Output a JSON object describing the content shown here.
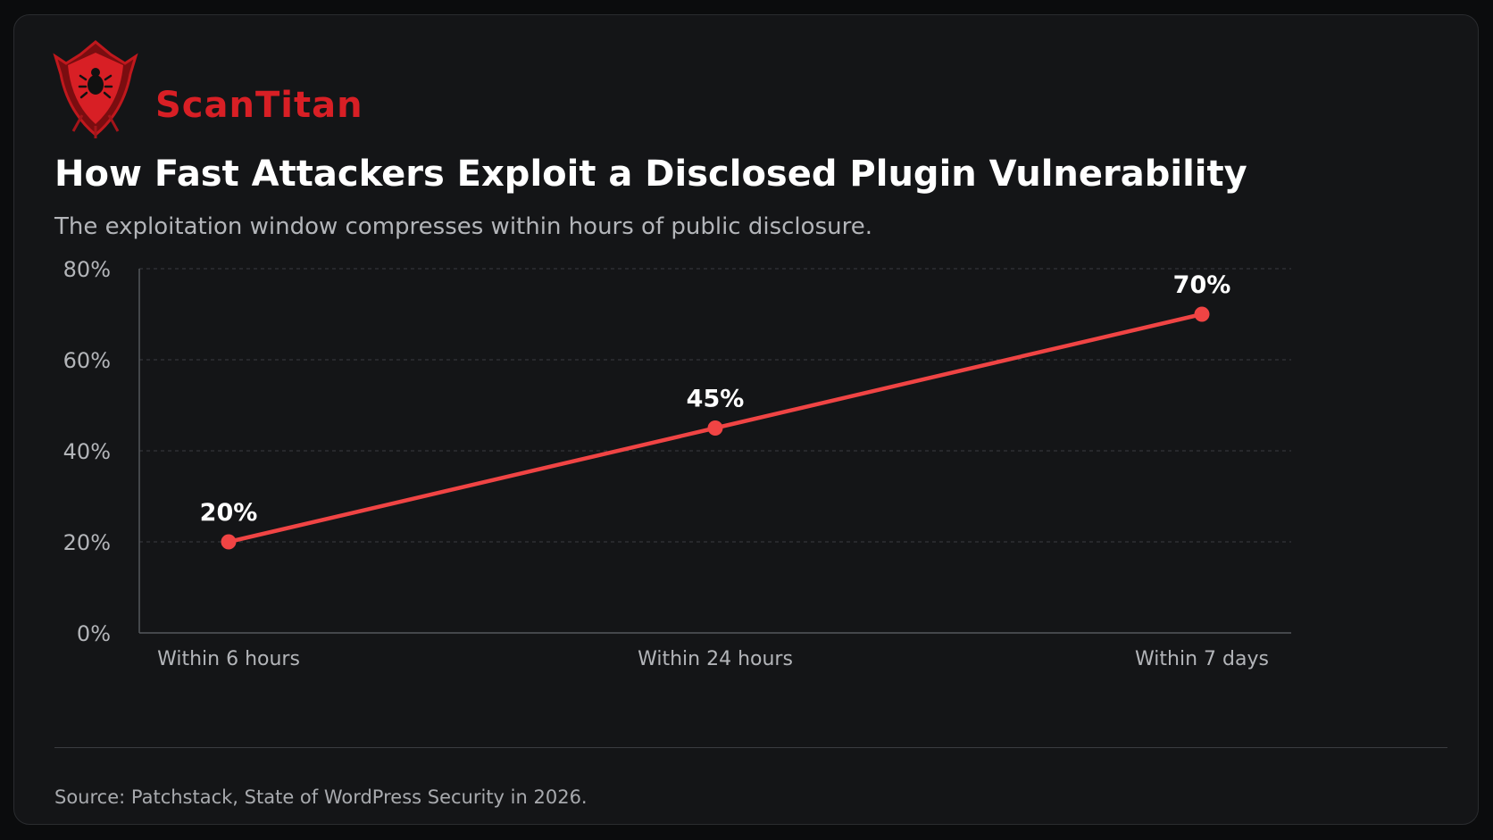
{
  "brand": {
    "name": "ScanTitan",
    "accent_color": "#d81f25",
    "logo_icon": "shield-bug-icon"
  },
  "header": {
    "title": "How Fast Attackers Exploit a Disclosed Plugin Vulnerability",
    "subtitle": "The exploitation window compresses within hours of public disclosure."
  },
  "footer": {
    "source": "Source: Patchstack, State of WordPress Security in 2026."
  },
  "chart_data": {
    "type": "line",
    "title": "",
    "xlabel": "",
    "ylabel": "",
    "categories": [
      "Within 6 hours",
      "Within 24 hours",
      "Within 7 days"
    ],
    "values": [
      20,
      45,
      70
    ],
    "data_labels": [
      "20%",
      "45%",
      "70%"
    ],
    "y_ticks": [
      0,
      20,
      40,
      60,
      80
    ],
    "y_tick_labels": [
      "0%",
      "20%",
      "40%",
      "60%",
      "80%"
    ],
    "ylim": [
      0,
      80
    ],
    "grid": true,
    "grid_style": "dashed-horizontal",
    "line_color": "#f04444",
    "legend": "none"
  }
}
